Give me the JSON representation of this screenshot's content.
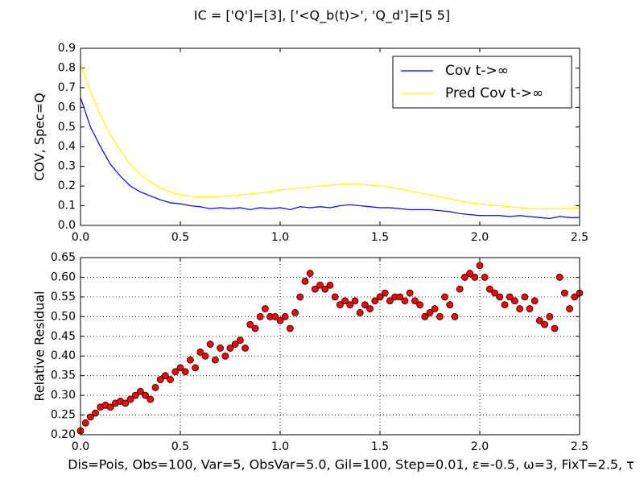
{
  "title": "IC = ['Q']=[3], ['<Q_b(t)>', 'Q_d']=[5 5]",
  "chart_data": [
    {
      "type": "line",
      "ylabel": "COV, Spec=Q",
      "legend": "upper right",
      "grid": false,
      "x": [
        0,
        0.05,
        0.1,
        0.15,
        0.2,
        0.25,
        0.3,
        0.35,
        0.4,
        0.45,
        0.5,
        0.55,
        0.6,
        0.65,
        0.7,
        0.75,
        0.8,
        0.85,
        0.9,
        0.95,
        1.0,
        1.05,
        1.1,
        1.15,
        1.2,
        1.25,
        1.3,
        1.35,
        1.4,
        1.45,
        1.5,
        1.55,
        1.6,
        1.65,
        1.7,
        1.75,
        1.8,
        1.85,
        1.9,
        1.95,
        2.0,
        2.05,
        2.1,
        2.15,
        2.2,
        2.25,
        2.3,
        2.35,
        2.4,
        2.45,
        2.5
      ],
      "series": [
        {
          "name": "Cov t->∞",
          "color": "#0000ff",
          "values": [
            0.65,
            0.5,
            0.4,
            0.31,
            0.25,
            0.2,
            0.17,
            0.15,
            0.13,
            0.115,
            0.11,
            0.1,
            0.095,
            0.085,
            0.09,
            0.085,
            0.09,
            0.08,
            0.09,
            0.085,
            0.09,
            0.08,
            0.095,
            0.09,
            0.095,
            0.09,
            0.1,
            0.105,
            0.1,
            0.095,
            0.09,
            0.09,
            0.085,
            0.08,
            0.08,
            0.08,
            0.075,
            0.07,
            0.06,
            0.055,
            0.05,
            0.05,
            0.05,
            0.045,
            0.05,
            0.045,
            0.04,
            0.035,
            0.045,
            0.04,
            0.04
          ]
        },
        {
          "name": "Pred Cov t->∞",
          "color": "#ffff00",
          "values": [
            0.82,
            0.68,
            0.56,
            0.46,
            0.38,
            0.31,
            0.26,
            0.22,
            0.19,
            0.17,
            0.155,
            0.148,
            0.145,
            0.145,
            0.147,
            0.15,
            0.155,
            0.16,
            0.165,
            0.17,
            0.18,
            0.185,
            0.19,
            0.195,
            0.2,
            0.205,
            0.21,
            0.21,
            0.21,
            0.205,
            0.2,
            0.195,
            0.185,
            0.175,
            0.165,
            0.155,
            0.145,
            0.135,
            0.125,
            0.115,
            0.11,
            0.105,
            0.1,
            0.095,
            0.09,
            0.087,
            0.085,
            0.085,
            0.085,
            0.087,
            0.09
          ]
        }
      ],
      "xlim": [
        0,
        2.5
      ],
      "ylim": [
        0,
        0.9
      ],
      "xticks": [
        {
          "value": 0,
          "label": "0.0"
        },
        0.5,
        {
          "value": 1,
          "label": "1.0"
        },
        1.5,
        {
          "value": 2,
          "label": "2.0"
        },
        2.5
      ],
      "yticks": [
        {
          "value": 0,
          "label": "0.0"
        },
        0.1,
        0.2,
        0.3,
        0.4,
        0.5,
        0.6,
        0.7,
        0.8,
        0.9
      ]
    },
    {
      "type": "scatter",
      "ylabel": "Relative Residual",
      "grid": true,
      "color": "#ff0000",
      "xlabel": "Dis=Pois, Obs=100, Var=5, ObsVar=5.0, Gil=100, Step=0.01, ε=-0.5, ω=3, FixT=2.5, τ",
      "x": [
        0,
        0.025,
        0.05,
        0.075,
        0.1,
        0.125,
        0.15,
        0.175,
        0.2,
        0.225,
        0.25,
        0.275,
        0.3,
        0.325,
        0.35,
        0.375,
        0.4,
        0.425,
        0.45,
        0.475,
        0.5,
        0.525,
        0.55,
        0.575,
        0.6,
        0.625,
        0.65,
        0.675,
        0.7,
        0.725,
        0.75,
        0.775,
        0.8,
        0.825,
        0.85,
        0.875,
        0.9,
        0.925,
        0.95,
        0.975,
        1.0,
        1.025,
        1.05,
        1.075,
        1.1,
        1.125,
        1.15,
        1.175,
        1.2,
        1.225,
        1.25,
        1.275,
        1.3,
        1.325,
        1.35,
        1.375,
        1.4,
        1.425,
        1.45,
        1.475,
        1.5,
        1.525,
        1.55,
        1.575,
        1.6,
        1.625,
        1.65,
        1.675,
        1.7,
        1.725,
        1.75,
        1.775,
        1.8,
        1.825,
        1.85,
        1.875,
        1.9,
        1.925,
        1.95,
        1.975,
        2.0,
        2.025,
        2.05,
        2.075,
        2.1,
        2.125,
        2.15,
        2.175,
        2.2,
        2.225,
        2.25,
        2.275,
        2.3,
        2.325,
        2.35,
        2.375,
        2.4,
        2.425,
        2.45,
        2.475,
        2.5
      ],
      "values": [
        0.21,
        0.23,
        0.245,
        0.255,
        0.27,
        0.275,
        0.27,
        0.28,
        0.285,
        0.28,
        0.29,
        0.3,
        0.31,
        0.3,
        0.29,
        0.32,
        0.34,
        0.35,
        0.34,
        0.36,
        0.37,
        0.36,
        0.39,
        0.37,
        0.41,
        0.4,
        0.43,
        0.39,
        0.42,
        0.4,
        0.42,
        0.43,
        0.44,
        0.42,
        0.48,
        0.47,
        0.5,
        0.52,
        0.5,
        0.5,
        0.49,
        0.5,
        0.47,
        0.51,
        0.55,
        0.59,
        0.61,
        0.57,
        0.58,
        0.57,
        0.58,
        0.55,
        0.53,
        0.54,
        0.53,
        0.54,
        0.51,
        0.53,
        0.52,
        0.54,
        0.55,
        0.56,
        0.54,
        0.55,
        0.55,
        0.54,
        0.56,
        0.54,
        0.53,
        0.5,
        0.51,
        0.52,
        0.5,
        0.55,
        0.53,
        0.5,
        0.57,
        0.6,
        0.61,
        0.6,
        0.63,
        0.6,
        0.57,
        0.56,
        0.55,
        0.53,
        0.55,
        0.54,
        0.52,
        0.55,
        0.52,
        0.54,
        0.49,
        0.48,
        0.5,
        0.47,
        0.6,
        0.56,
        0.52,
        0.55,
        0.56
      ],
      "xlim": [
        0,
        2.5
      ],
      "ylim": [
        0.2,
        0.65
      ],
      "xticks": [
        {
          "value": 0,
          "label": "0.0"
        },
        0.5,
        {
          "value": 1,
          "label": "1.0"
        },
        1.5,
        {
          "value": 2,
          "label": "2.0"
        },
        2.5
      ],
      "yticks": [
        {
          "value": 0.2,
          "label": "0.20"
        },
        0.25,
        {
          "value": 0.3,
          "label": "0.30"
        },
        0.35,
        {
          "value": 0.4,
          "label": "0.40"
        },
        0.45,
        {
          "value": 0.5,
          "label": "0.50"
        },
        0.55,
        {
          "value": 0.6,
          "label": "0.60"
        },
        0.65
      ]
    }
  ]
}
